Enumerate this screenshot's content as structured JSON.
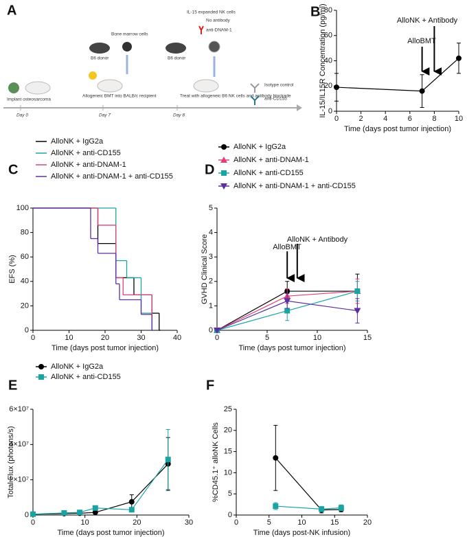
{
  "schematic": {
    "label": "A",
    "texts": {
      "nk_cells": "IL-15 expanded NK cells",
      "no_antibody": "No antibody",
      "anti_dnam": "anti-DNAM-1",
      "bone_marrow": "Bone marrow cells",
      "donor_1": "B6 donor",
      "donor_2": "B6 donor",
      "isotype": "Isotype control",
      "anti_cd155": "anti-CD155",
      "implant": "Implant osteosarcoma",
      "bmt": "Allogeneic BMT into BALB/c recipient",
      "treat": "Treat with allogeneic B6 NK cells and antibody blockade",
      "day0": "Day 0",
      "day7": "Day 7",
      "day8": "Day 8"
    }
  },
  "chart_data": [
    {
      "label": "B",
      "type": "line",
      "x": [
        0,
        7,
        10
      ],
      "values": [
        19,
        16,
        42
      ],
      "errors": [
        11,
        13,
        12
      ],
      "color": "#000000",
      "marker": "circle",
      "xlim": [
        0,
        10
      ],
      "ylim": [
        0,
        80
      ],
      "xticks": [
        0,
        2,
        4,
        6,
        8,
        10
      ],
      "yticks": [
        0,
        20,
        40,
        60,
        80
      ],
      "xlabel": "Time (days post tumor injection)",
      "ylabel": "IL-15/IL15R Concentration (pg/ml)",
      "annotations": [
        {
          "text": "AlloBMT",
          "x": 7
        },
        {
          "text": "AlloNK + Antibody",
          "x": 8
        }
      ]
    },
    {
      "label": "C",
      "type": "step",
      "xlim": [
        0,
        40
      ],
      "ylim": [
        0,
        100
      ],
      "xticks": [
        0,
        10,
        20,
        30,
        40
      ],
      "yticks": [
        0,
        20,
        40,
        60,
        80,
        100
      ],
      "xlabel": "Time (days post tumor injection)",
      "ylabel": "EFS (%)",
      "legend": "top-left",
      "series": [
        {
          "name": "AlloNK + IgG2a",
          "color": "#000000",
          "x": [
            0,
            18,
            23,
            28,
            33,
            35
          ],
          "values": [
            100,
            71,
            43,
            29,
            14,
            0
          ]
        },
        {
          "name": "AlloNK + anti-CD155",
          "color": "#1aa3a3",
          "x": [
            0,
            23,
            26,
            30,
            33
          ],
          "values": [
            100,
            57,
            43,
            14,
            0
          ]
        },
        {
          "name": "AlloNK + anti-DNAM-1",
          "color": "#e0407a",
          "x": [
            0,
            18,
            23,
            25,
            33
          ],
          "values": [
            100,
            86,
            43,
            29,
            0
          ]
        },
        {
          "name": "AlloNK + anti-DNAM-1 + anti-CD155",
          "color": "#5b2fa0",
          "x": [
            0,
            16,
            18,
            23,
            24,
            30,
            33
          ],
          "values": [
            100,
            75,
            63,
            38,
            25,
            13,
            0
          ]
        }
      ]
    },
    {
      "label": "D",
      "type": "line",
      "x": [
        0,
        7,
        14
      ],
      "xlim": [
        0,
        15
      ],
      "ylim": [
        0,
        5
      ],
      "xticks": [
        0,
        5,
        10,
        15
      ],
      "yticks": [
        0,
        1,
        2,
        3,
        4,
        5
      ],
      "xlabel": "Time (days post tumor injection)",
      "ylabel": "GVHD Clinical Score",
      "legend": "top-left",
      "annotations": [
        {
          "text": "AlloBMT",
          "x": 7
        },
        {
          "text": "AlloNK + Antibody",
          "x": 8
        }
      ],
      "series": [
        {
          "name": "AlloNK + IgG2a",
          "color": "#000000",
          "marker": "circle",
          "values": [
            0,
            1.6,
            1.6
          ],
          "errors": [
            0,
            0.4,
            0.7
          ]
        },
        {
          "name": "AlloNK + anti-DNAM-1",
          "color": "#e0407a",
          "marker": "triangle",
          "values": [
            0,
            1.4,
            1.6
          ],
          "errors": [
            0,
            0.3,
            0.5
          ]
        },
        {
          "name": "AlloNK + anti-CD155",
          "color": "#1aa3a3",
          "marker": "square",
          "values": [
            0,
            0.8,
            1.6
          ],
          "errors": [
            0,
            0.4,
            0.4
          ]
        },
        {
          "name": "AlloNK + anti-DNAM-1 + anti-CD155",
          "color": "#5b2fa0",
          "marker": "triangle-down",
          "values": [
            0,
            1.2,
            0.8
          ],
          "errors": [
            0,
            0.3,
            0.5
          ]
        }
      ]
    },
    {
      "label": "E",
      "type": "line",
      "x": [
        0,
        6,
        9,
        12,
        19,
        26
      ],
      "xlim": [
        0,
        30
      ],
      "ylim": [
        0,
        60000000
      ],
      "xticks": [
        0,
        10,
        20,
        30
      ],
      "yticks": [
        0,
        {
          "value": 20000000,
          "label": "2×10⁷"
        },
        {
          "value": 40000000,
          "label": "4×10⁷"
        },
        {
          "value": 60000000,
          "label": "6×10⁷"
        }
      ],
      "xlabel": "Time (days post tumor injection)",
      "ylabel": "Total Flux (photons/s)",
      "legend": "top-left",
      "series": [
        {
          "name": "AlloNK + IgG2a",
          "color": "#000000",
          "marker": "circle",
          "values": [
            500000,
            800000,
            1000000,
            1500000,
            7500000,
            29000000
          ],
          "errors": [
            300000,
            500000,
            500000,
            600000,
            4000000,
            15000000
          ]
        },
        {
          "name": "AlloNK + anti-CD155",
          "color": "#1aa3a3",
          "marker": "square",
          "values": [
            500000,
            1200000,
            1500000,
            4000000,
            3000000,
            31500000
          ],
          "errors": [
            300000,
            500000,
            500000,
            700000,
            1000000,
            17000000
          ]
        }
      ]
    },
    {
      "label": "F",
      "type": "line",
      "x": [
        6,
        13,
        16
      ],
      "xlim": [
        0,
        20
      ],
      "ylim": [
        0,
        25
      ],
      "xticks": [
        0,
        5,
        10,
        15,
        20
      ],
      "yticks": [
        0,
        5,
        10,
        15,
        20,
        25
      ],
      "xlabel": "Time (days post-NK infusion)",
      "ylabel": "%CD45.1⁺ alloNK Cells",
      "series": [
        {
          "color": "#000000",
          "marker": "circle",
          "values": [
            13.5,
            1.2,
            1.3
          ],
          "errors": [
            7.7,
            0.7,
            0.5
          ]
        },
        {
          "color": "#1aa3a3",
          "marker": "square",
          "values": [
            2.1,
            1.4,
            1.7
          ],
          "errors": [
            0.8,
            0.6,
            0.7
          ]
        }
      ]
    }
  ]
}
